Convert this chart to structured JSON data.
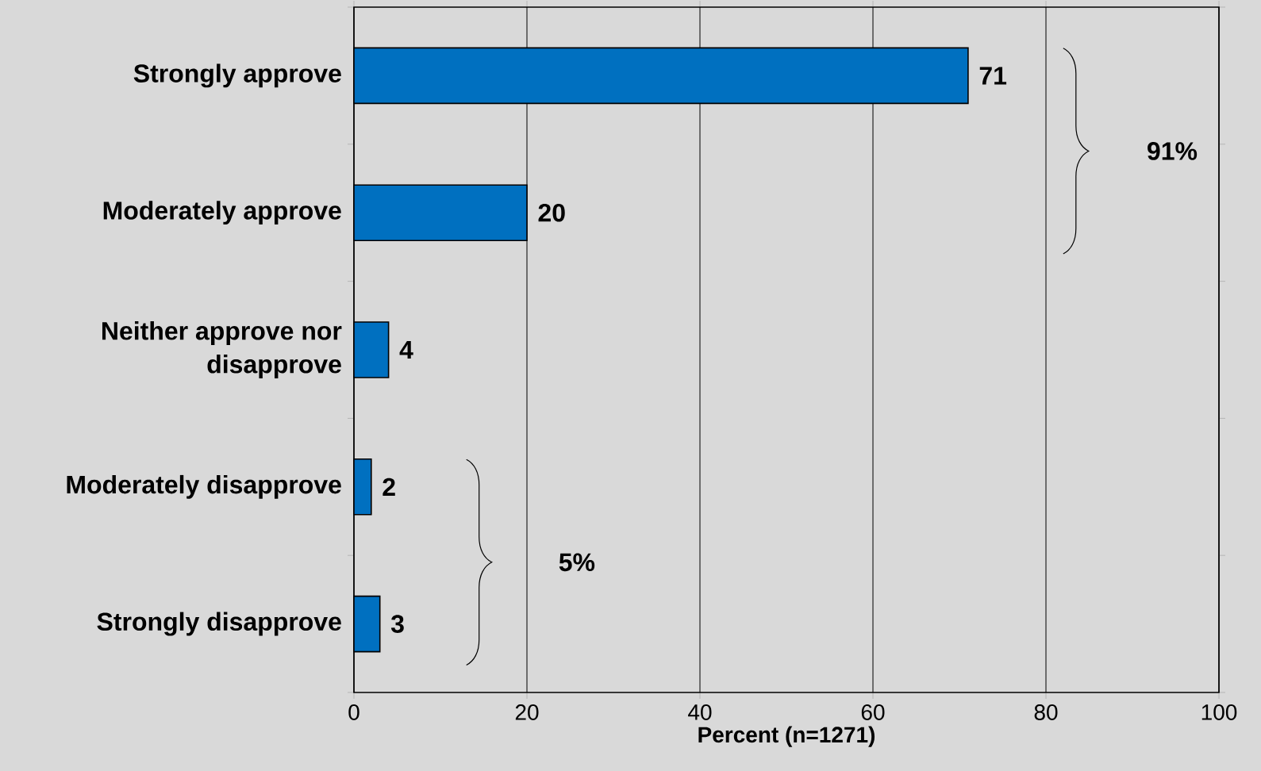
{
  "chart_data": {
    "type": "bar",
    "orientation": "horizontal",
    "xlabel": "Percent (n=1271)",
    "categories": [
      "Strongly approve",
      "Moderately approve",
      "Neither approve nor disapprove",
      "Moderately disapprove",
      "Strongly disapprove"
    ],
    "values": [
      71,
      20,
      4,
      2,
      3
    ],
    "color": "#0070c0",
    "data_labels": true,
    "xlim": [
      0,
      100
    ],
    "xticks": [
      0,
      20,
      40,
      60,
      80,
      100
    ],
    "grid": "x",
    "annotations": [
      "91%",
      "5%"
    ]
  }
}
